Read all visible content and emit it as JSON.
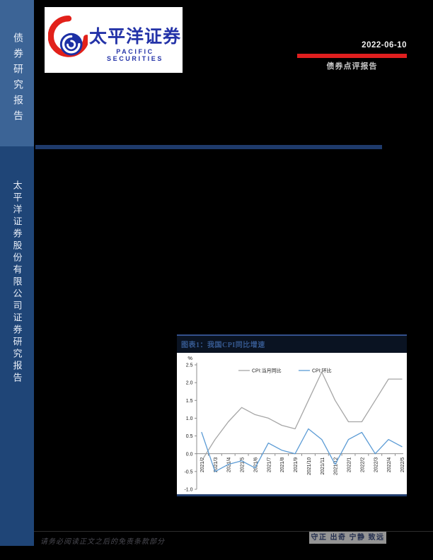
{
  "page": {
    "background": "#000000"
  },
  "sidebar": {
    "top_label": "债券研究报告",
    "bottom_label": "太平洋证券股份有限公司证券研究报告",
    "top_band_color": "#3c6496",
    "bottom_band_color": "#1f4577"
  },
  "header": {
    "logo": {
      "cn": "太平洋证券",
      "en": "PACIFIC SECURITIES",
      "brand_blue": "#2433a8",
      "mark_red": "#e2211a",
      "mark_blue": "#1c2fa5"
    },
    "date": "2022-06-10",
    "report_type": "债券点评报告",
    "accent_red": "#df1f1f",
    "divider_color": "#1e3a6b"
  },
  "figure": {
    "title": "图表1：我国CPI同比增速"
  },
  "chart_data": {
    "type": "line",
    "title": "图表1：我国CPI同比增速",
    "unit_label": "%",
    "categories": [
      "2021/2",
      "2021/3",
      "2021/4",
      "2021/5",
      "2021/6",
      "2021/7",
      "2021/8",
      "2021/9",
      "2021/10",
      "2021/11",
      "2021/12",
      "2022/1",
      "2022/2",
      "2022/3",
      "2022/4",
      "2022/5"
    ],
    "series": [
      {
        "name": "CPI:当月同比",
        "color": "#a6a6a6",
        "values": [
          -0.2,
          0.4,
          0.9,
          1.3,
          1.1,
          1.0,
          0.8,
          0.7,
          1.5,
          2.3,
          1.5,
          0.9,
          0.9,
          1.5,
          2.1,
          2.1
        ]
      },
      {
        "name": "CPI:环比",
        "color": "#5b9bd5",
        "values": [
          0.6,
          -0.5,
          -0.3,
          -0.2,
          -0.4,
          0.3,
          0.1,
          0.0,
          0.7,
          0.4,
          -0.3,
          0.4,
          0.6,
          0.0,
          0.4,
          0.2
        ]
      }
    ],
    "ylim": [
      -1.0,
      2.5
    ],
    "ytick_step": 0.5,
    "grid": false,
    "legend_position": "top"
  },
  "footer": {
    "disclaimer": "请务必阅读正文之后的免责条款部分",
    "motto": "守正 出奇 宁静 致远"
  }
}
